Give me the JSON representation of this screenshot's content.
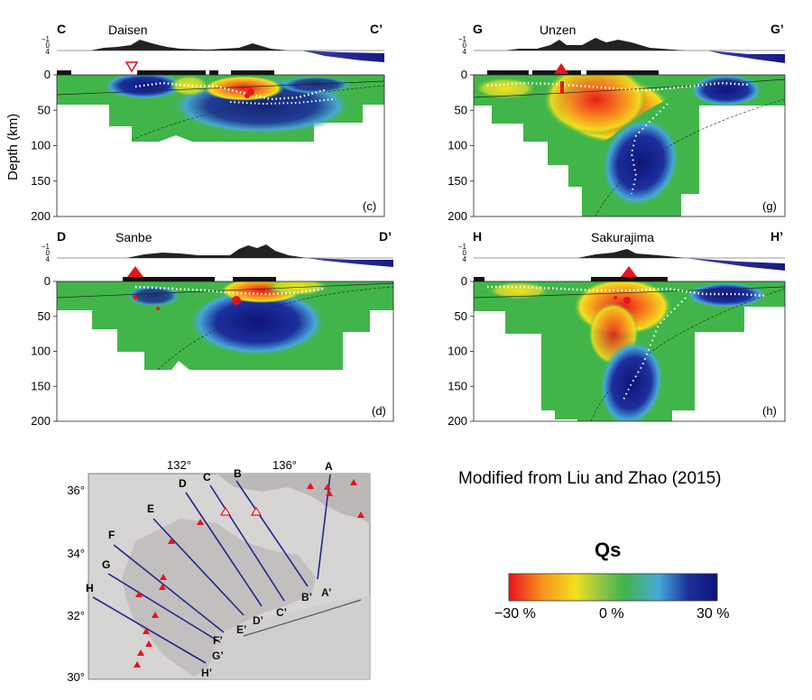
{
  "figure": {
    "credit": "Modified from Liu and Zhao (2015)",
    "y_axis_label": "Depth (km)"
  },
  "legend": {
    "title": "Qs",
    "min_label": "−30 %",
    "mid_label": "0 %",
    "max_label": "30 %",
    "colors": [
      "#e8141c",
      "#f7931e",
      "#f3e11f",
      "#8bc34a",
      "#41b54a",
      "#48a8d8",
      "#1c2f9c",
      "#0d137a"
    ]
  },
  "chart_data": [
    {
      "type": "heatmap",
      "panel": "(c)",
      "volcano": "Daisen",
      "start": "C",
      "end": "C’",
      "yticks": [
        "0",
        "50",
        "100",
        "150",
        "200"
      ],
      "ylim": [
        0,
        200
      ],
      "ylabel": "Depth (km)"
    },
    {
      "type": "heatmap",
      "panel": "(g)",
      "volcano": "Unzen",
      "start": "G",
      "end": "G’",
      "yticks": [
        "0",
        "50",
        "100",
        "150",
        "200"
      ],
      "ylim": [
        0,
        200
      ],
      "ylabel": "Depth (km)"
    },
    {
      "type": "heatmap",
      "panel": "(d)",
      "volcano": "Sanbe",
      "start": "D",
      "end": "D’",
      "yticks": [
        "0",
        "50",
        "100",
        "150",
        "200"
      ],
      "ylim": [
        0,
        200
      ],
      "ylabel": "Depth (km)"
    },
    {
      "type": "heatmap",
      "panel": "(h)",
      "volcano": "Sakurajima",
      "start": "H",
      "end": "H’",
      "yticks": [
        "0",
        "50",
        "100",
        "150",
        "200"
      ],
      "ylim": [
        0,
        200
      ],
      "ylabel": "Depth (km)"
    }
  ],
  "topo_ticks": [
    "−1",
    "0",
    "4"
  ],
  "map": {
    "lon_labels": [
      "132°",
      "136°"
    ],
    "lat_labels": [
      "36°",
      "34°",
      "32°",
      "30°"
    ],
    "profiles": [
      {
        "start": "A",
        "end": "A’"
      },
      {
        "start": "B",
        "end": "B’"
      },
      {
        "start": "C",
        "end": "C’"
      },
      {
        "start": "D",
        "end": "D’"
      },
      {
        "start": "E",
        "end": "E’"
      },
      {
        "start": "F",
        "end": "F’"
      },
      {
        "start": "G",
        "end": "G’"
      },
      {
        "start": "H",
        "end": "H’"
      }
    ]
  }
}
